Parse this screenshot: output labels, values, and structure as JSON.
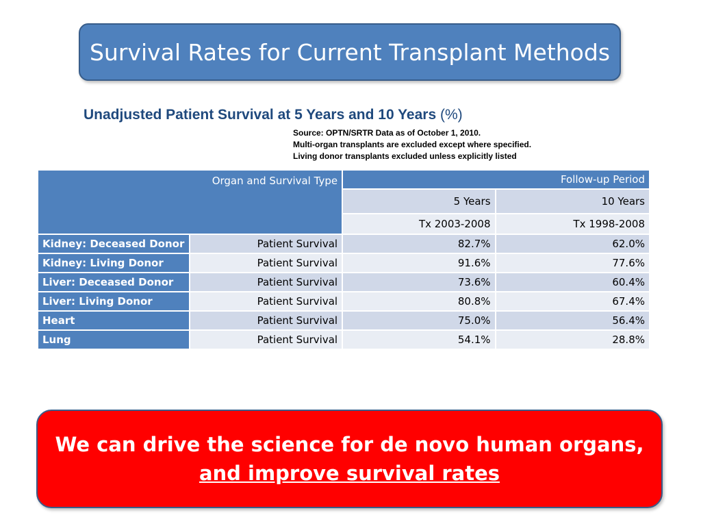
{
  "title": "Survival Rates for Current Transplant Methods",
  "heading": {
    "main": "Unadjusted Patient Survival at 5 Years and 10 Years",
    "unit": "(%)"
  },
  "notes": [
    "Source: OPTN/SRTR Data as of October 1, 2010.",
    "Multi-organ transplants are excluded except where specified.",
    "Living donor transplants excluded unless explicitly listed"
  ],
  "table": {
    "header_organ": "Organ and Survival Type",
    "header_followup": "Follow-up Period",
    "col_5y": "5 Years",
    "col_10y": "10 Years",
    "period_5y": "Tx 2003-2008",
    "period_10y": "Tx 1998-2008",
    "rows": [
      {
        "organ": "Kidney: Deceased Donor",
        "type": "Patient Survival",
        "y5": "82.7%",
        "y10": "62.0%"
      },
      {
        "organ": "Kidney: Living Donor",
        "type": "Patient Survival",
        "y5": "91.6%",
        "y10": "77.6%"
      },
      {
        "organ": "Liver: Deceased Donor",
        "type": "Patient Survival",
        "y5": "73.6%",
        "y10": "60.4%"
      },
      {
        "organ": "Liver: Living Donor",
        "type": "Patient Survival",
        "y5": "80.8%",
        "y10": "67.4%"
      },
      {
        "organ": "Heart",
        "type": "Patient Survival",
        "y5": "75.0%",
        "y10": "56.4%"
      },
      {
        "organ": "Lung",
        "type": "Patient Survival",
        "y5": "54.1%",
        "y10": "28.8%"
      }
    ]
  },
  "callout": {
    "line1": "We can drive the science for de novo human organs,",
    "line2": "and improve survival rates"
  }
}
